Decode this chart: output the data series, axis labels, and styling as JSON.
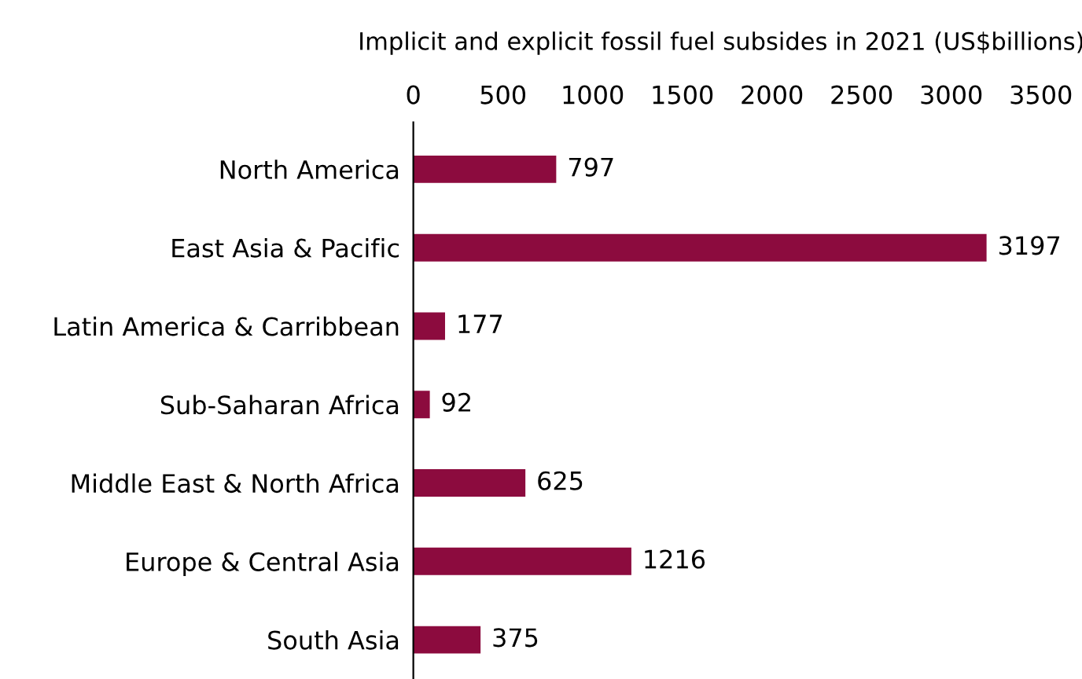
{
  "chart_data": {
    "type": "bar",
    "orientation": "horizontal",
    "xlabel": "Implicit and explicit fossil fuel subsides in 2021 (US$billions)",
    "categories": [
      "North America",
      "East Asia & Pacific",
      "Latin America & Carribbean",
      "Sub-Saharan Africa",
      "Middle East & North Africa",
      "Europe & Central Asia",
      "South Asia"
    ],
    "values": [
      797,
      3197,
      177,
      92,
      625,
      1216,
      375
    ],
    "color": "#8c0b3e",
    "xlim": [
      0,
      3500
    ],
    "xticks": [
      0,
      500,
      1000,
      1500,
      2000,
      2500,
      3000,
      3500
    ],
    "data_labels": true,
    "grid": false,
    "legend": false
  }
}
